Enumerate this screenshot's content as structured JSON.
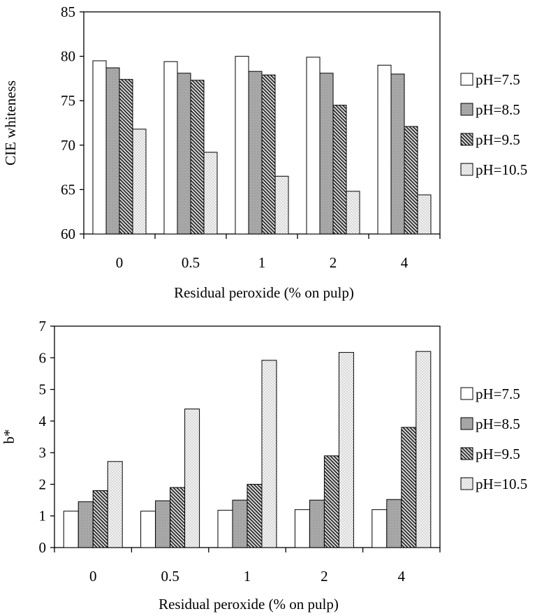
{
  "chart_data": [
    {
      "type": "bar",
      "xlabel": "Residual peroxide (% on pulp)",
      "ylabel": "CIE whiteness",
      "ylim": [
        60,
        85
      ],
      "yticks": [
        60,
        65,
        70,
        75,
        80,
        85
      ],
      "categories": [
        "0",
        "0.5",
        "1",
        "2",
        "4"
      ],
      "series": [
        {
          "name": "pH=7.5",
          "values": [
            79.5,
            79.4,
            80.0,
            79.9,
            79.0
          ]
        },
        {
          "name": "pH=8.5",
          "values": [
            78.7,
            78.1,
            78.3,
            78.1,
            78.0
          ]
        },
        {
          "name": "pH=9.5",
          "values": [
            77.4,
            77.3,
            77.9,
            74.5,
            72.1
          ]
        },
        {
          "name": "pH=10.5",
          "values": [
            71.8,
            69.2,
            66.5,
            64.8,
            64.4
          ]
        }
      ],
      "legend_position": "right",
      "grid": false
    },
    {
      "type": "bar",
      "xlabel": "Residual peroxide (% on pulp)",
      "ylabel": "b*",
      "ylim": [
        0,
        7
      ],
      "yticks": [
        0,
        1,
        2,
        3,
        4,
        5,
        6,
        7
      ],
      "categories": [
        "0",
        "0.5",
        "1",
        "2",
        "4"
      ],
      "series": [
        {
          "name": "pH=7.5",
          "values": [
            1.15,
            1.15,
            1.18,
            1.2,
            1.2
          ]
        },
        {
          "name": "pH=8.5",
          "values": [
            1.45,
            1.48,
            1.5,
            1.5,
            1.52
          ]
        },
        {
          "name": "pH=9.5",
          "values": [
            1.8,
            1.9,
            2.0,
            2.9,
            3.8
          ]
        },
        {
          "name": "pH=10.5",
          "values": [
            2.72,
            4.38,
            5.92,
            6.17,
            6.2
          ]
        }
      ],
      "legend_position": "right",
      "grid": false
    }
  ]
}
